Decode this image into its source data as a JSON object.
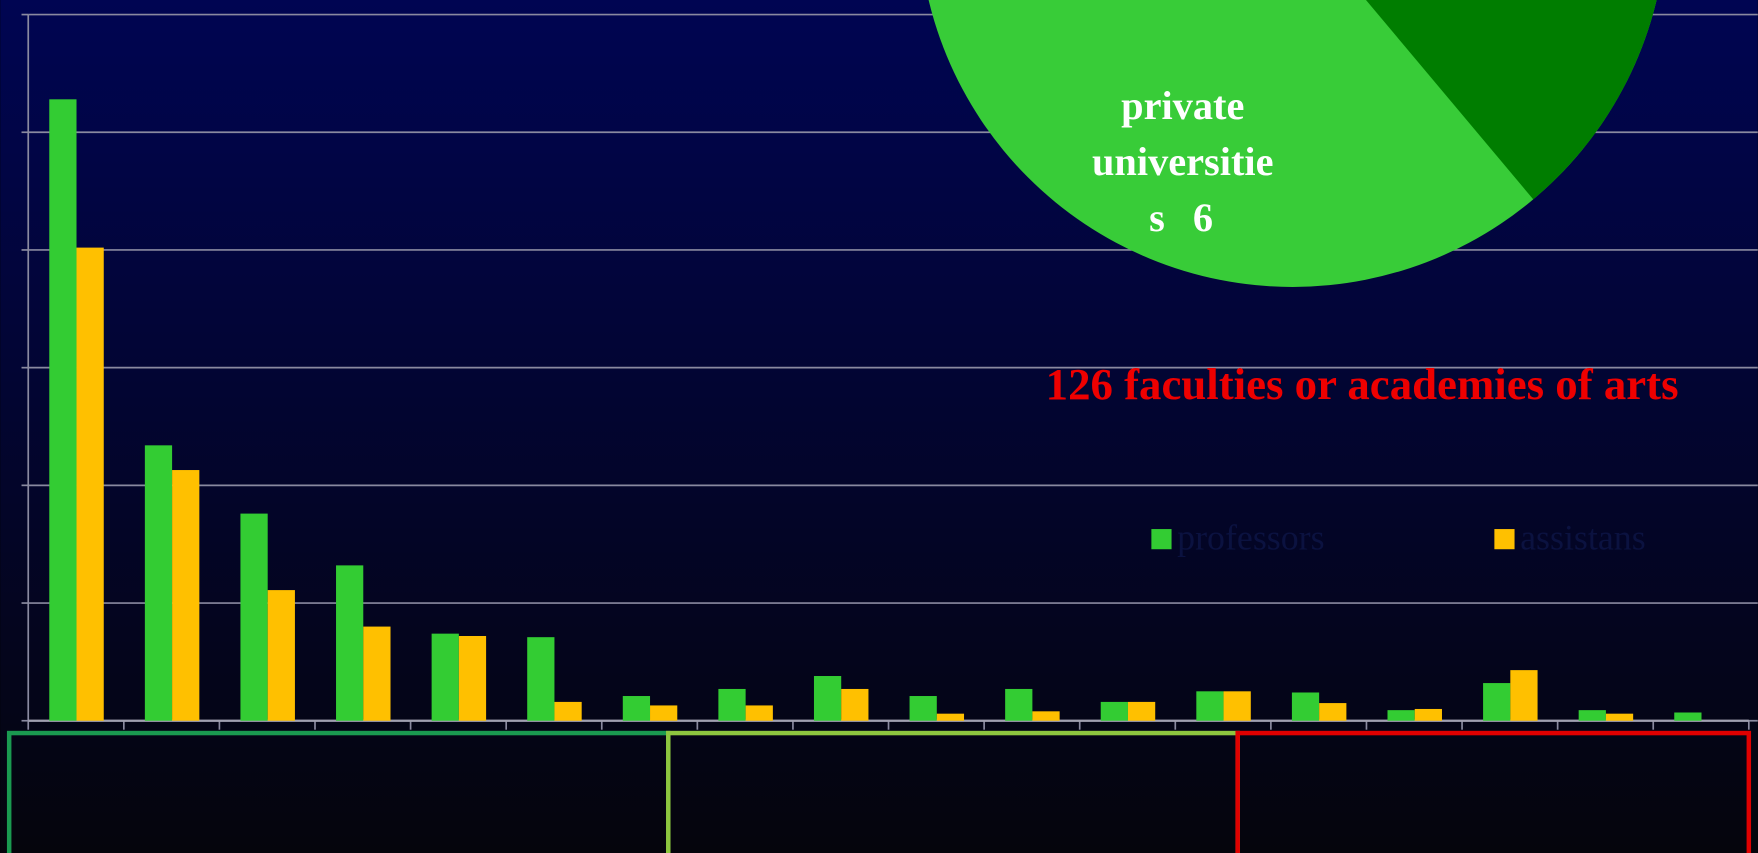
{
  "chart_data": [
    {
      "type": "bar",
      "title": "126 faculties or academies of arts",
      "categories": [
        null,
        null,
        null,
        null,
        null,
        null,
        null,
        null,
        null,
        null,
        null,
        null,
        null,
        null,
        null,
        null,
        null,
        null
      ],
      "series": [
        {
          "name": "professors",
          "color": "#33cc33",
          "values": [
            5.28,
            2.34,
            1.76,
            1.32,
            0.74,
            0.71,
            0.21,
            0.27,
            0.38,
            0.21,
            0.27,
            0.16,
            0.25,
            0.24,
            0.09,
            0.32,
            0.09,
            0.07
          ]
        },
        {
          "name": "assistans",
          "color": "#ffc000",
          "values": [
            4.02,
            2.13,
            1.11,
            0.8,
            0.72,
            0.16,
            0.13,
            0.13,
            0.27,
            0.06,
            0.08,
            0.16,
            0.25,
            0.15,
            0.1,
            0.43,
            0.06,
            0
          ]
        }
      ],
      "ylim": [
        0,
        6
      ],
      "yticks": [
        0,
        1,
        2,
        3,
        4,
        5,
        6
      ],
      "grid": true
    },
    {
      "type": "pie",
      "slices": [
        {
          "label_lines": [
            "private",
            "universitie",
            "s"
          ],
          "value": 6,
          "color": "#38cc38"
        }
      ]
    }
  ]
}
